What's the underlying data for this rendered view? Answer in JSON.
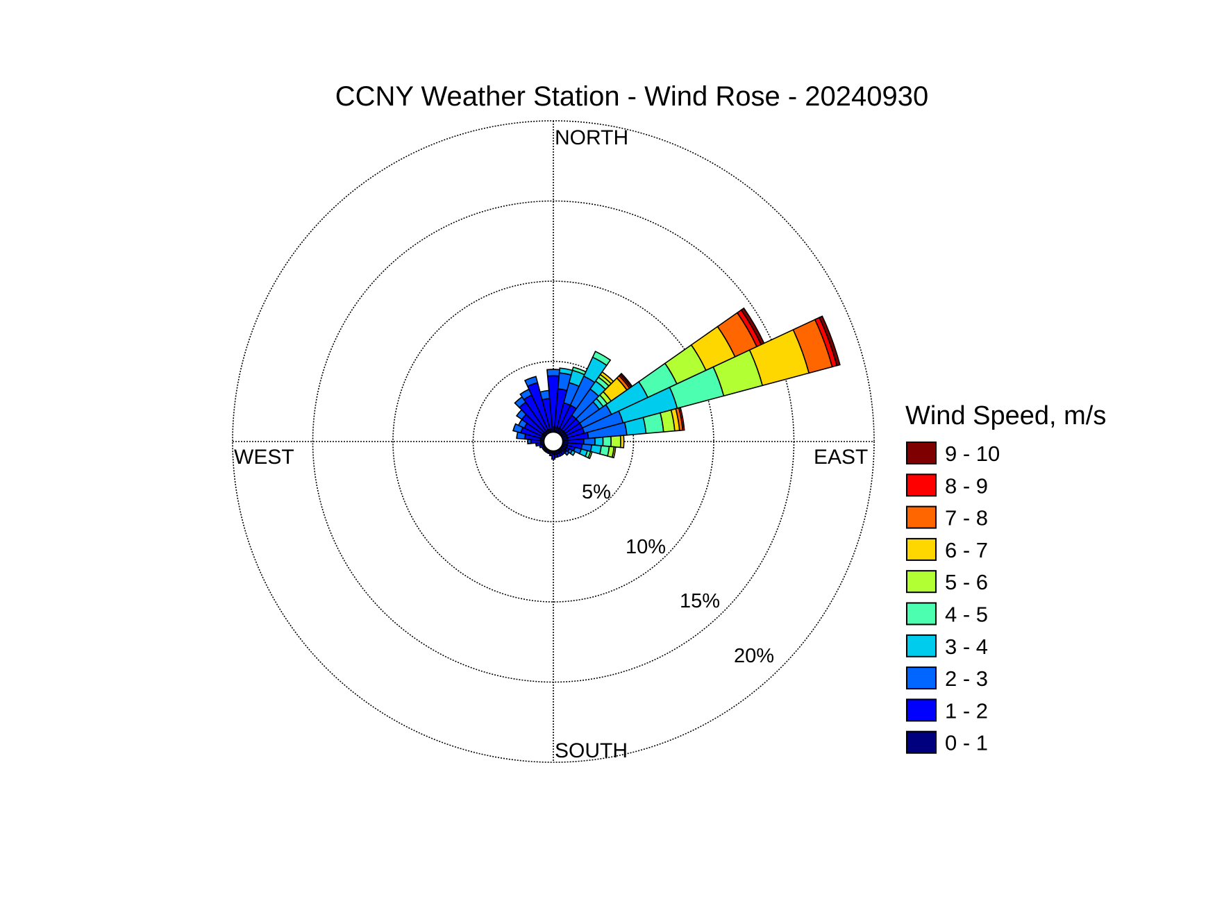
{
  "chart_data": {
    "type": "windrose",
    "title": "CCNY Weather Station - Wind Rose - 20240930",
    "direction_labels": {
      "north": "NORTH",
      "east": "EAST",
      "south": "SOUTH",
      "west": "WEST"
    },
    "rings": [
      {
        "value": 5,
        "label": "5%"
      },
      {
        "value": 10,
        "label": "10%"
      },
      {
        "value": 15,
        "label": "15%"
      },
      {
        "value": 20,
        "label": "20%"
      }
    ],
    "rmax": 20,
    "legend": {
      "title": "Wind Speed, m/s",
      "placement": "right",
      "items": [
        "9 - 10",
        "8 - 9",
        "7 - 8",
        "6 - 7",
        "5 - 6",
        "4 - 5",
        "3 - 4",
        "2 - 3",
        "1 - 2",
        "0 - 1"
      ]
    },
    "speed_bins": [
      "0 - 1",
      "1 - 2",
      "2 - 3",
      "3 - 4",
      "4 - 5",
      "5 - 6",
      "6 - 7",
      "7 - 8",
      "8 - 9",
      "9 - 10"
    ],
    "bin_colors": [
      "#00007f",
      "#0000ff",
      "#0066ff",
      "#00ccee",
      "#4cffb0",
      "#b2ff33",
      "#ffd700",
      "#ff6600",
      "#ff0000",
      "#7f0000"
    ],
    "direction_width_deg": 10,
    "directions_deg": [
      0,
      10,
      20,
      30,
      40,
      50,
      60,
      70,
      80,
      90,
      100,
      110,
      120,
      130,
      140,
      150,
      160,
      170,
      180,
      190,
      200,
      210,
      220,
      230,
      240,
      250,
      260,
      270,
      280,
      290,
      300,
      310,
      320,
      330,
      340,
      350
    ],
    "cumulative_percent": [
      [
        0.9,
        4.1,
        4.5
      ],
      [
        0.9,
        3.3,
        4.3,
        4.6
      ],
      [
        0.9,
        2.5,
        3.8,
        4.6,
        4.8
      ],
      [
        0.9,
        2.5,
        4.5,
        5.8,
        6.2
      ],
      [
        0.9,
        2.0,
        4.0,
        4.6,
        4.9,
        5.1,
        5.3
      ],
      [
        0.9,
        2.0,
        3.5,
        3.8,
        4.1,
        4.4,
        5.6,
        5.8,
        5.9,
        6.0
      ],
      [
        0.9,
        2.0,
        4.0,
        6.5,
        8.5,
        10.5,
        12.5,
        14.0,
        14.3,
        14.5
      ],
      [
        0.9,
        2.0,
        4.5,
        8.0,
        11.0,
        13.5,
        16.5,
        18.0,
        18.3,
        18.5
      ],
      [
        0.9,
        2.2,
        4.6,
        5.8,
        6.9,
        7.6,
        7.9,
        8.1,
        8.2
      ],
      [
        0.9,
        1.9,
        2.6,
        3.1,
        3.6,
        4.2,
        4.4
      ],
      [
        0.9,
        1.8,
        2.4,
        3.0,
        3.5,
        3.8,
        3.9
      ],
      [
        0.9,
        1.4,
        1.8,
        2.2,
        2.4,
        2.5
      ],
      [
        0.9,
        1.1,
        1.3,
        1.5
      ],
      [
        0.9,
        1.0,
        1.2
      ],
      [
        0.8,
        1.0
      ],
      [
        0.8,
        1.0
      ],
      [
        0.8,
        1.0
      ],
      [
        0.8,
        1.0
      ],
      [
        0.8,
        1.1
      ],
      [
        0.7,
        0.9
      ],
      [
        0.7,
        0.8
      ],
      [
        0.7,
        0.8
      ],
      [
        0.7,
        0.8
      ],
      [
        0.7,
        0.8
      ],
      [
        0.7,
        0.8
      ],
      [
        0.7,
        0.9
      ],
      [
        0.8,
        1.1
      ],
      [
        0.8,
        1.4,
        1.6
      ],
      [
        0.8,
        1.8,
        2.3
      ],
      [
        0.8,
        2.1,
        2.6
      ],
      [
        0.8,
        2.0,
        2.4
      ],
      [
        0.8,
        2.4,
        2.8
      ],
      [
        0.8,
        3.0,
        3.4
      ],
      [
        0.8,
        3.2,
        3.6
      ],
      [
        0.8,
        3.8,
        4.2
      ],
      [
        0.8,
        2.7,
        3.2
      ]
    ]
  }
}
